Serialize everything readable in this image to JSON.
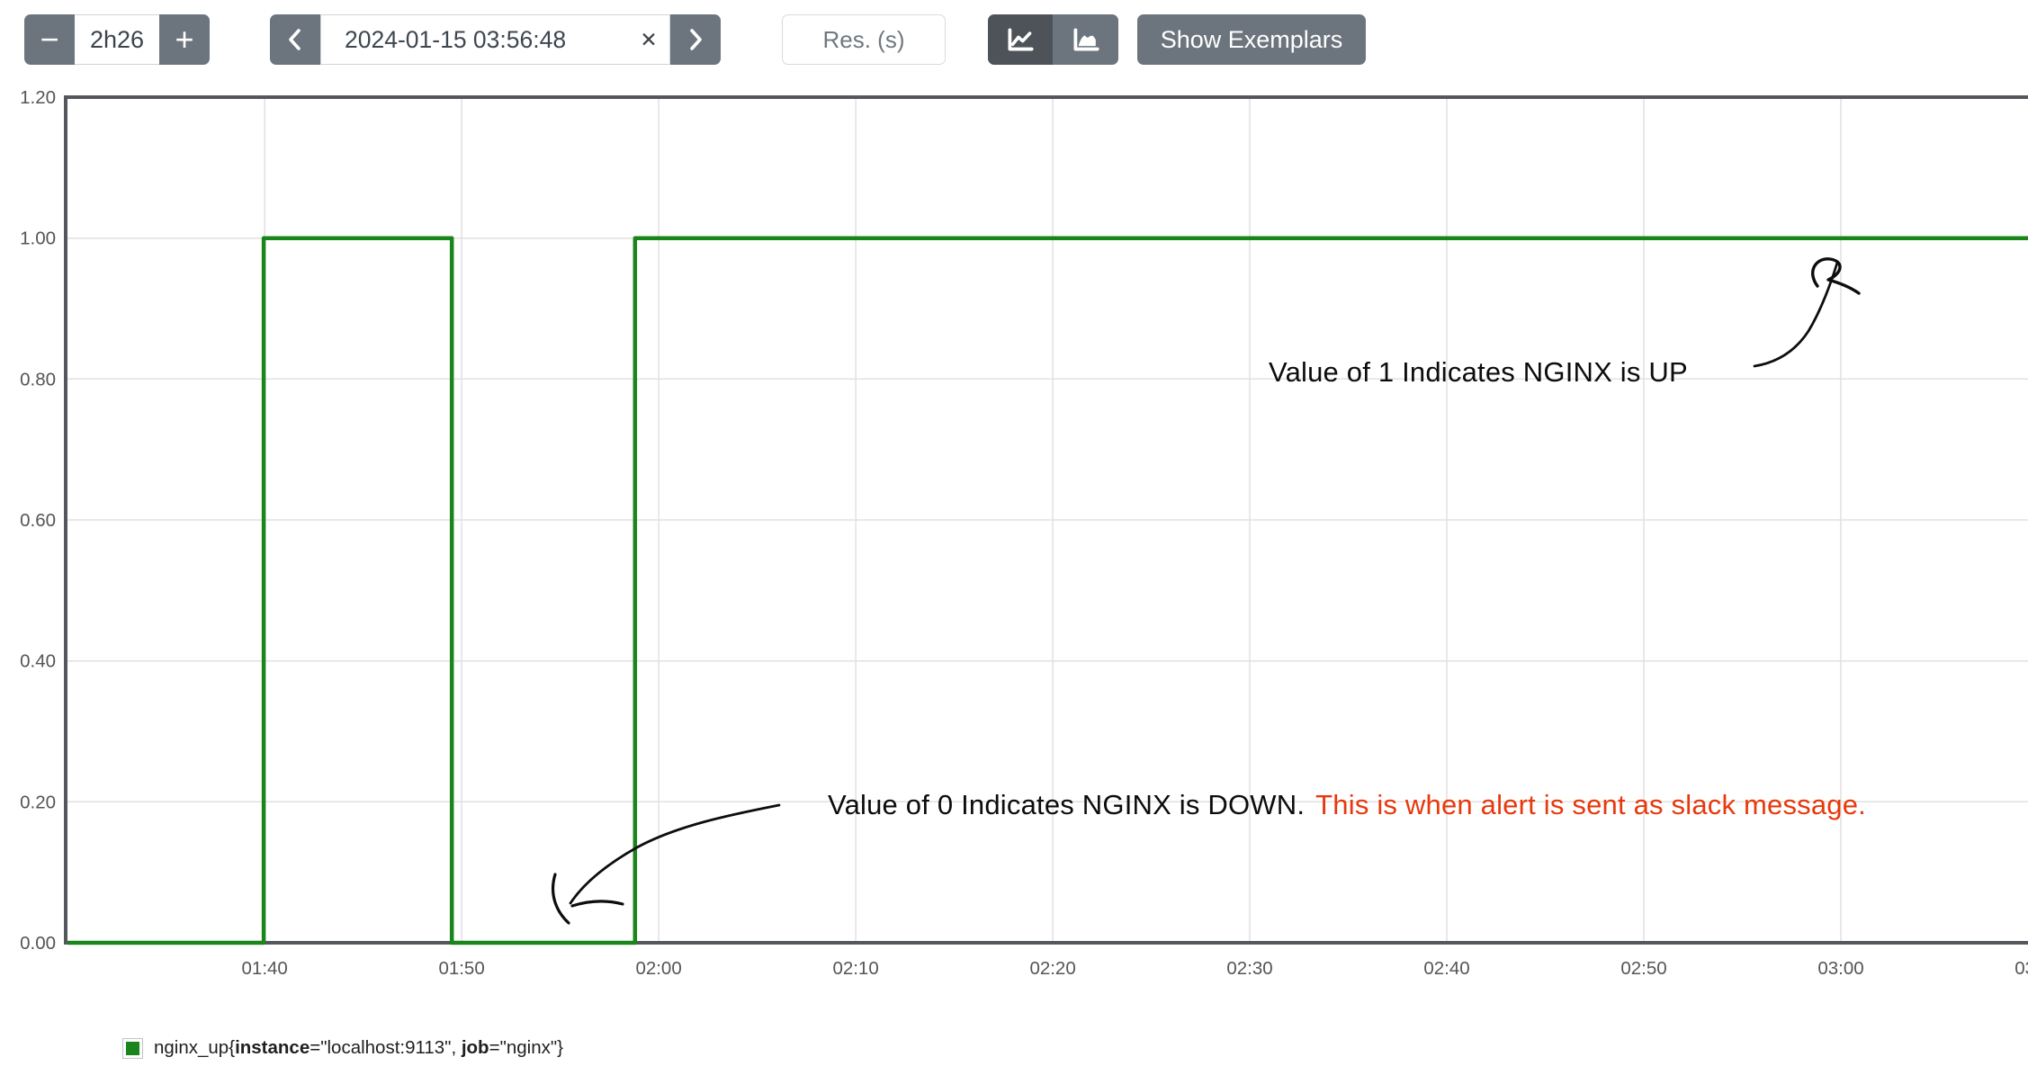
{
  "toolbar": {
    "range": {
      "decrease_label": "−",
      "value": "2h26",
      "increase_label": "+"
    },
    "time": {
      "value": "2024-01-15 03:56:48",
      "clear_label": "✕"
    },
    "resolution_placeholder": "Res. (s)",
    "show_exemplars_label": "Show Exemplars"
  },
  "chart_data": {
    "type": "line",
    "step": true,
    "x_unit": "time (HH:MM)",
    "ylabel": "",
    "xlabel": "",
    "grid": true,
    "legend_position": "bottom-left",
    "x_range_min": [
      89.9,
      189.5
    ],
    "y_range": [
      0,
      1.2
    ],
    "x_ticks": [
      {
        "t": 100,
        "label": "01:40"
      },
      {
        "t": 110,
        "label": "01:50"
      },
      {
        "t": 120,
        "label": "02:00"
      },
      {
        "t": 130,
        "label": "02:10"
      },
      {
        "t": 140,
        "label": "02:20"
      },
      {
        "t": 150,
        "label": "02:30"
      },
      {
        "t": 160,
        "label": "02:40"
      },
      {
        "t": 170,
        "label": "02:50"
      },
      {
        "t": 180,
        "label": "03:00"
      },
      {
        "t": 190,
        "label": "03:10"
      }
    ],
    "y_ticks": [
      {
        "v": 0.0,
        "label": "0.00"
      },
      {
        "v": 0.2,
        "label": "0.20"
      },
      {
        "v": 0.4,
        "label": "0.40"
      },
      {
        "v": 0.6,
        "label": "0.60"
      },
      {
        "v": 0.8,
        "label": "0.80"
      },
      {
        "v": 1.0,
        "label": "1.00"
      },
      {
        "v": 1.2,
        "label": "1.20"
      }
    ],
    "series": [
      {
        "name": "nginx_up{instance=\"localhost:9113\", job=\"nginx\"}",
        "color": "#1a851a",
        "points": [
          [
            90.0,
            0
          ],
          [
            99.95,
            0
          ],
          [
            99.95,
            1
          ],
          [
            109.5,
            1
          ],
          [
            109.5,
            0
          ],
          [
            118.8,
            0
          ],
          [
            118.8,
            1
          ],
          [
            190.0,
            1
          ]
        ]
      }
    ]
  },
  "annotations": {
    "up": {
      "text": "Value of 1 Indicates NGINX is UP"
    },
    "down": {
      "text_black": "Value of 0 Indicates NGINX is DOWN.",
      "text_red": "This is when alert is sent as slack message."
    }
  },
  "legend": {
    "swatch_color": "#1a851a",
    "parts": [
      {
        "text": "nginx_up{",
        "bold": false
      },
      {
        "text": "instance",
        "bold": true
      },
      {
        "text": "=\"localhost:9113\", ",
        "bold": false
      },
      {
        "text": "job",
        "bold": true
      },
      {
        "text": "=\"nginx\"}",
        "bold": false
      }
    ]
  },
  "colors": {
    "series_green": "#1a851a",
    "annotation_red": "#e8380c",
    "toolbar_gray": "#6c757d",
    "toolbar_gray_active": "#4d5359",
    "axis": "#54575b",
    "grid": "#e1e1e1",
    "tick_text": "#555555"
  }
}
